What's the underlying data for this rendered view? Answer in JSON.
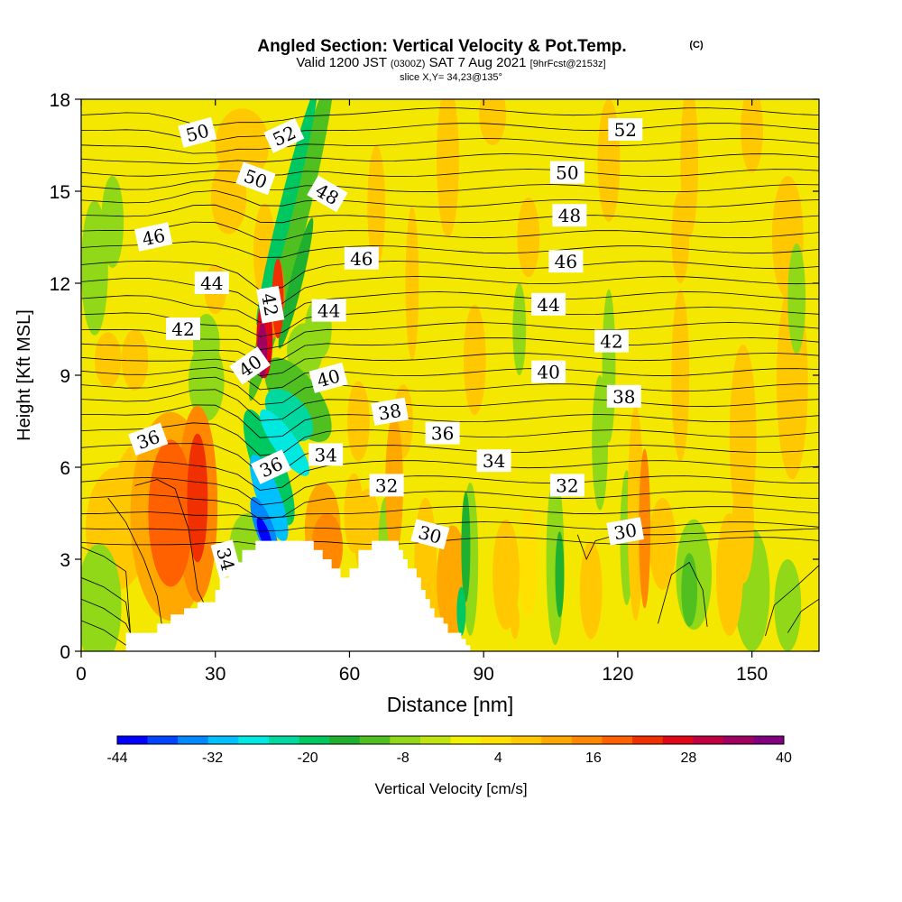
{
  "chart_data": {
    "type": "heatmap",
    "title": "Angled Section: Vertical Velocity & Pot.Temp.",
    "copyright": "(C)",
    "subtitle_valid": "Valid 1200 JST",
    "subtitle_utc": "(0300Z)",
    "subtitle_date": "SAT 7 Aug 2021",
    "subtitle_fcst": "[9hrFcst@2153z]",
    "slice_info": "slice X,Y= 34,23@135°",
    "xlabel": "Distance [nm]",
    "ylabel": "Height [Kft MSL]",
    "xlim": [
      0,
      165
    ],
    "ylim": [
      0,
      18
    ],
    "xticks": [
      "0",
      "30",
      "60",
      "90",
      "120",
      "150"
    ],
    "yticks": [
      "0",
      "3",
      "6",
      "9",
      "12",
      "15",
      "18"
    ],
    "colorbar": {
      "label": "Vertical Velocity [cm/s]",
      "levels": [
        -44,
        -40,
        -36,
        -32,
        -28,
        -24,
        -20,
        -16,
        -12,
        -8,
        -4,
        0,
        4,
        8,
        12,
        16,
        20,
        24,
        28,
        32,
        36,
        40
      ],
      "tick_labels": [
        "-44",
        "-32",
        "-20",
        "-8",
        "4",
        "16",
        "28",
        "40"
      ],
      "colors": [
        "#0000ff",
        "#0044ff",
        "#0088ff",
        "#00c0ff",
        "#00e8e0",
        "#00d8a0",
        "#00c860",
        "#20b030",
        "#50c020",
        "#90d818",
        "#c0e410",
        "#f0f000",
        "#ffe000",
        "#ffc800",
        "#ffa800",
        "#ff8800",
        "#ff6000",
        "#f03000",
        "#e00818",
        "#c00040",
        "#a00060",
        "#800080"
      ]
    },
    "theta_levels": [
      30,
      32,
      34,
      36,
      38,
      40,
      42,
      44,
      46,
      48,
      50,
      52
    ],
    "theta_labels": [
      {
        "text": "52",
        "x": 45.4,
        "y": 16.8,
        "rot": -25
      },
      {
        "text": "50",
        "x": 26.0,
        "y": 16.9,
        "rot": -15
      },
      {
        "text": "50",
        "x": 39.0,
        "y": 15.4,
        "rot": 20
      },
      {
        "text": "48",
        "x": 55.0,
        "y": 14.9,
        "rot": 30
      },
      {
        "text": "46",
        "x": 16.2,
        "y": 13.5,
        "rot": -12
      },
      {
        "text": "46",
        "x": 62.7,
        "y": 12.8,
        "rot": 0
      },
      {
        "text": "44",
        "x": 29.2,
        "y": 12.0,
        "rot": 0
      },
      {
        "text": "44",
        "x": 55.4,
        "y": 11.1,
        "rot": 0
      },
      {
        "text": "42",
        "x": 42.2,
        "y": 11.3,
        "rot": 80
      },
      {
        "text": "42",
        "x": 22.8,
        "y": 10.5,
        "rot": 0
      },
      {
        "text": "40",
        "x": 37.8,
        "y": 9.3,
        "rot": -35
      },
      {
        "text": "40",
        "x": 55.3,
        "y": 8.9,
        "rot": -15
      },
      {
        "text": "38",
        "x": 69.0,
        "y": 7.8,
        "rot": -10
      },
      {
        "text": "36",
        "x": 15.0,
        "y": 6.9,
        "rot": -20
      },
      {
        "text": "36",
        "x": 80.8,
        "y": 7.1,
        "rot": 0
      },
      {
        "text": "36",
        "x": 42.5,
        "y": 6.0,
        "rot": -25
      },
      {
        "text": "34",
        "x": 54.7,
        "y": 6.4,
        "rot": 0
      },
      {
        "text": "34",
        "x": 92.3,
        "y": 6.2,
        "rot": 0
      },
      {
        "text": "32",
        "x": 68.3,
        "y": 5.4,
        "rot": 0
      },
      {
        "text": "32",
        "x": 108.7,
        "y": 5.4,
        "rot": 0
      },
      {
        "text": "30",
        "x": 78.0,
        "y": 3.8,
        "rot": 15
      },
      {
        "text": "30",
        "x": 121.7,
        "y": 3.9,
        "rot": -10
      },
      {
        "text": "34",
        "x": 32.3,
        "y": 3.0,
        "rot": 75
      },
      {
        "text": "52",
        "x": 121.7,
        "y": 17.0,
        "rot": 0
      },
      {
        "text": "50",
        "x": 108.7,
        "y": 15.6,
        "rot": 0
      },
      {
        "text": "48",
        "x": 109.2,
        "y": 14.2,
        "rot": 0
      },
      {
        "text": "46",
        "x": 108.4,
        "y": 12.7,
        "rot": 0
      },
      {
        "text": "44",
        "x": 104.5,
        "y": 11.3,
        "rot": 0
      },
      {
        "text": "42",
        "x": 118.6,
        "y": 10.1,
        "rot": 0
      },
      {
        "text": "40",
        "x": 104.5,
        "y": 9.1,
        "rot": 0
      },
      {
        "text": "38",
        "x": 121.4,
        "y": 8.3,
        "rot": 0
      }
    ],
    "terrain": {
      "x": [
        0,
        10,
        10,
        17,
        17,
        20,
        20,
        23,
        23,
        26,
        26,
        30,
        30,
        31,
        31,
        33,
        33,
        35,
        35,
        36,
        36,
        39,
        39,
        40,
        40,
        44,
        44,
        52,
        52,
        54,
        54,
        56,
        56,
        58,
        58,
        60,
        60,
        62,
        62,
        65,
        65,
        66,
        66,
        71,
        71,
        72,
        72,
        73,
        73,
        75,
        75,
        76,
        76,
        77,
        77,
        78,
        78,
        79,
        79,
        81,
        81,
        82,
        82,
        85,
        85,
        86,
        86,
        87,
        87,
        165
      ],
      "y": [
        0,
        0,
        0.6,
        0.6,
        0.9,
        0.9,
        1.2,
        1.2,
        1.4,
        1.4,
        1.6,
        1.6,
        2.0,
        2.0,
        2.4,
        2.4,
        2.7,
        2.7,
        2.9,
        2.9,
        3.3,
        3.3,
        3.6,
        3.6,
        3.6,
        3.6,
        3.6,
        3.6,
        3.3,
        3.3,
        3.0,
        3.0,
        2.7,
        2.7,
        2.4,
        2.4,
        2.7,
        2.7,
        3.3,
        3.3,
        3.6,
        3.6,
        3.6,
        3.6,
        3.3,
        3.3,
        3.0,
        3.0,
        2.7,
        2.7,
        2.4,
        2.4,
        2.0,
        2.0,
        1.7,
        1.7,
        1.4,
        1.4,
        1.1,
        1.1,
        0.9,
        0.9,
        0.6,
        0.6,
        0.4,
        0.4,
        0.2,
        0.2,
        0,
        0
      ]
    }
  }
}
